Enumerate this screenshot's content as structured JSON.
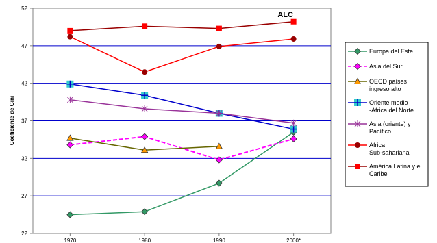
{
  "chart_data": {
    "type": "line",
    "title": "",
    "xlabel": "",
    "ylabel": "Coeficiente de Gini",
    "categories": [
      "1970",
      "1980",
      "1990",
      "2000*"
    ],
    "ylim": [
      22,
      52
    ],
    "yticks": [
      22,
      27,
      32,
      37,
      42,
      47,
      52
    ],
    "grid": true,
    "legend_position": "right",
    "annotations": [
      {
        "text": "ALC",
        "category": "2000*",
        "value": 51.2
      }
    ],
    "series": [
      {
        "name": "Europa del Este",
        "values": [
          24.5,
          24.9,
          28.7,
          35.5
        ],
        "color": "#339966",
        "marker": "diamond",
        "marker_color": "#339966",
        "dashed": false
      },
      {
        "name": "Asia del Sur",
        "values": [
          33.8,
          34.9,
          31.8,
          34.6
        ],
        "color": "#ff00ff",
        "marker": "diamond",
        "marker_color": "#ff00ff",
        "dashed": true
      },
      {
        "name": "OECD países ingreso alto",
        "values": [
          34.7,
          33.1,
          33.6,
          null
        ],
        "color": "#666600",
        "marker": "triangle",
        "marker_color": "#ff9900",
        "dashed": false
      },
      {
        "name": "Oriente medio -África del Norte",
        "values": [
          41.9,
          40.4,
          38.0,
          35.9
        ],
        "color": "#0000cc",
        "marker": "plus-square",
        "marker_color": "#33cccc",
        "dashed": false
      },
      {
        "name": "Asia (oriente) y Pacífico",
        "values": [
          39.8,
          38.6,
          38.0,
          36.7
        ],
        "color": "#993399",
        "marker": "star",
        "marker_color": "#993399",
        "dashed": false
      },
      {
        "name": "África Sub-sahariana",
        "values": [
          48.2,
          43.5,
          46.9,
          47.9
        ],
        "color": "#ff0000",
        "marker": "circle",
        "marker_color": "#990000",
        "dashed": false
      },
      {
        "name": "América Latina y el Caribe",
        "values": [
          49.0,
          49.6,
          49.3,
          50.2
        ],
        "color": "#990000",
        "marker": "square",
        "marker_color": "#ff0000",
        "dashed": false
      }
    ]
  }
}
